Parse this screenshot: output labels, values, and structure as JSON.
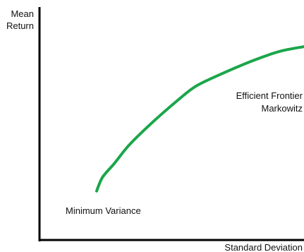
{
  "chart_data": {
    "type": "line",
    "ylabel_lines": [
      "Mean",
      "Return"
    ],
    "xlabel": "Standard Deviation",
    "series": [
      {
        "name": "",
        "color": "#1aa64a",
        "points": [
          {
            "x": 0.31,
            "y": 0.21
          },
          {
            "x": 0.33,
            "y": 0.27
          },
          {
            "x": 0.37,
            "y": 0.33
          },
          {
            "x": 0.42,
            "y": 0.41
          },
          {
            "x": 0.5,
            "y": 0.51
          },
          {
            "x": 0.58,
            "y": 0.6
          },
          {
            "x": 0.64,
            "y": 0.66
          },
          {
            "x": 0.72,
            "y": 0.71
          },
          {
            "x": 0.83,
            "y": 0.77
          },
          {
            "x": 0.92,
            "y": 0.81
          },
          {
            "x": 1.0,
            "y": 0.83
          }
        ]
      }
    ],
    "xlim": [
      0.12,
      1.0
    ],
    "ylim": [
      0.0,
      1.0
    ],
    "grid": false,
    "axis_ticks": false,
    "annotations": [
      {
        "id": "frontier-label-line1",
        "text": "Efficient Frontier"
      },
      {
        "id": "frontier-label-line2",
        "text": "Markowitz"
      },
      {
        "id": "min-variance-label",
        "text": "Minimum Variance"
      }
    ]
  }
}
